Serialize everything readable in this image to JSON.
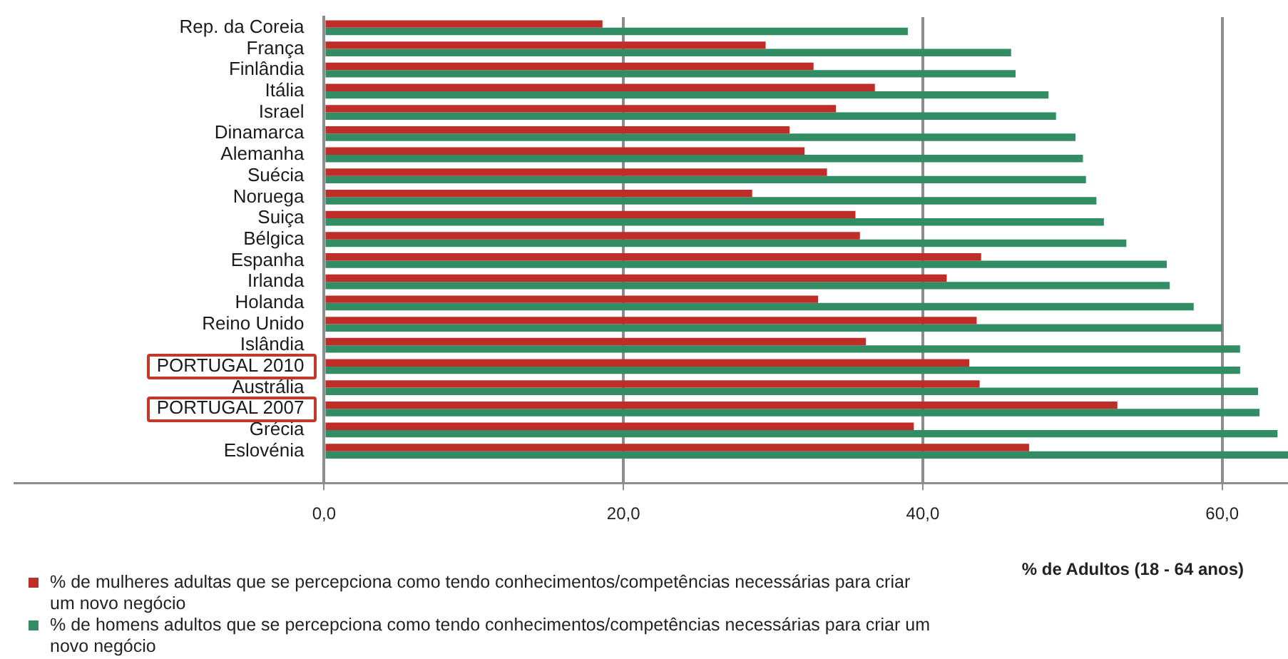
{
  "chart_data": {
    "type": "bar",
    "orientation": "horizontal",
    "categories": [
      "Rep. da Coreia",
      "França",
      "Finlândia",
      "Itália",
      "Israel",
      "Dinamarca",
      "Alemanha",
      "Suécia",
      "Noruega",
      "Suiça",
      "Bélgica",
      "Espanha",
      "Irlanda",
      "Holanda",
      "Reino Unido",
      "Islândia",
      "PORTUGAL 2010",
      "Austrália",
      "PORTUGAL 2007",
      "Grécia",
      "Eslovénia",
      null
    ],
    "series": [
      {
        "name": "% de mulheres adultas que se percepciona como tendo conhecimentos/competências necessárias para criar um novo negócio",
        "color": "#be2d28",
        "values": [
          18.6,
          29.5,
          32.7,
          36.8,
          34.2,
          31.1,
          32.1,
          33.6,
          28.6,
          35.5,
          35.8,
          43.9,
          41.6,
          33.0,
          43.6,
          36.2,
          43.1,
          43.8,
          53.0,
          39.4,
          47.1,
          null
        ]
      },
      {
        "name": "% de homens adultos que se percepciona como tendo conhecimentos/competências necessárias para criar um novo negócio",
        "color": "#328c64",
        "values": [
          39.0,
          45.9,
          46.2,
          48.4,
          48.9,
          50.2,
          50.7,
          50.9,
          51.6,
          52.1,
          53.6,
          56.3,
          56.5,
          58.1,
          60.0,
          61.2,
          61.2,
          62.4,
          62.5,
          63.7,
          64.4,
          null
        ]
      }
    ],
    "xlabel": "% de Adultos (18 - 64 anos)",
    "xlim": [
      -20.7,
      64.4
    ],
    "xticks": [
      {
        "value": 0,
        "label": "0,0"
      },
      {
        "value": 20,
        "label": "20,0"
      },
      {
        "value": 40,
        "label": "40,0"
      },
      {
        "value": 60,
        "label": "60,0"
      }
    ],
    "grid": "x",
    "legend": "bottom"
  }
}
